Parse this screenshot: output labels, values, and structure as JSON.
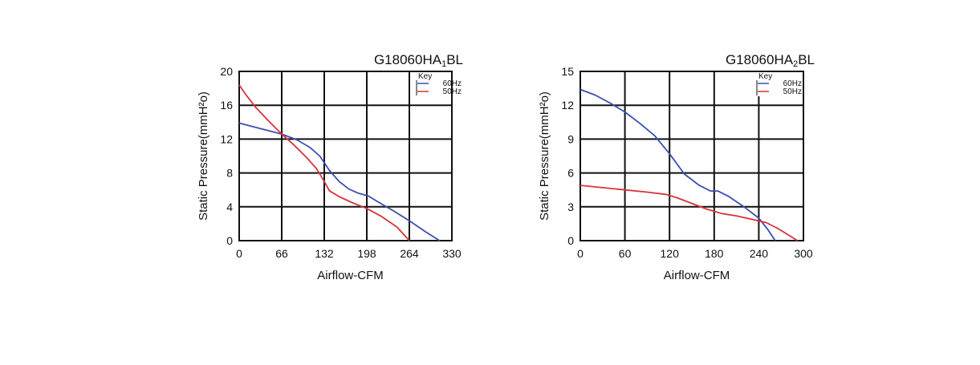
{
  "chart_data": [
    {
      "type": "line",
      "title": "G18060HA",
      "title_sub": "1",
      "title_suffix": "BL",
      "xlabel": "Airflow-CFM",
      "ylabel": "Static Pressure(mmH²o)",
      "xlim": [
        0,
        330
      ],
      "ylim": [
        0,
        20
      ],
      "x_ticks": [
        0,
        66,
        132,
        198,
        264,
        330
      ],
      "y_ticks": [
        0,
        4,
        8,
        12,
        16,
        20
      ],
      "grid": true,
      "legend_title": "Key",
      "legend_position": "top-right",
      "series": [
        {
          "name": "60Hz",
          "color": "#3b4fb0",
          "points": [
            [
              0,
              13.9
            ],
            [
              20,
              13.5
            ],
            [
              40,
              13.1
            ],
            [
              66,
              12.6
            ],
            [
              90,
              11.9
            ],
            [
              110,
              11.0
            ],
            [
              125,
              10.0
            ],
            [
              140,
              8.3
            ],
            [
              155,
              7.0
            ],
            [
              170,
              6.1
            ],
            [
              185,
              5.6
            ],
            [
              200,
              5.3
            ],
            [
              215,
              4.6
            ],
            [
              240,
              3.5
            ],
            [
              265,
              2.3
            ],
            [
              290,
              1.0
            ],
            [
              311,
              0
            ]
          ]
        },
        {
          "name": "50Hz",
          "color": "#d8323c",
          "points": [
            [
              0,
              18.4
            ],
            [
              10,
              17.3
            ],
            [
              25,
              15.8
            ],
            [
              45,
              14.2
            ],
            [
              66,
              12.6
            ],
            [
              85,
              11.3
            ],
            [
              105,
              9.8
            ],
            [
              120,
              8.5
            ],
            [
              132,
              7.0
            ],
            [
              140,
              5.9
            ],
            [
              155,
              5.2
            ],
            [
              175,
              4.5
            ],
            [
              198,
              3.8
            ],
            [
              220,
              2.9
            ],
            [
              245,
              1.6
            ],
            [
              264,
              0
            ]
          ]
        }
      ]
    },
    {
      "type": "line",
      "title": "G18060HA",
      "title_sub": "2",
      "title_suffix": "BL",
      "xlabel": "Airflow-CFM",
      "ylabel": "Static Pressure(mmH²o)",
      "xlim": [
        0,
        300
      ],
      "ylim": [
        0,
        15
      ],
      "x_ticks": [
        0,
        60,
        120,
        180,
        240,
        300
      ],
      "y_ticks": [
        0,
        3,
        6,
        9,
        12,
        15
      ],
      "grid": true,
      "legend_title": "Key",
      "legend_position": "top-right",
      "series": [
        {
          "name": "60Hz",
          "color": "#3b4fb0",
          "points": [
            [
              0,
              13.4
            ],
            [
              20,
              12.9
            ],
            [
              40,
              12.2
            ],
            [
              60,
              11.4
            ],
            [
              80,
              10.4
            ],
            [
              100,
              9.3
            ],
            [
              120,
              7.7
            ],
            [
              140,
              5.9
            ],
            [
              160,
              4.9
            ],
            [
              175,
              4.4
            ],
            [
              185,
              4.4
            ],
            [
              200,
              3.9
            ],
            [
              220,
              3.0
            ],
            [
              240,
              2.0
            ],
            [
              252,
              1.0
            ],
            [
              262,
              0
            ]
          ]
        },
        {
          "name": "50Hz",
          "color": "#d8323c",
          "points": [
            [
              0,
              4.9
            ],
            [
              30,
              4.7
            ],
            [
              60,
              4.5
            ],
            [
              90,
              4.3
            ],
            [
              115,
              4.1
            ],
            [
              130,
              3.8
            ],
            [
              150,
              3.3
            ],
            [
              170,
              2.8
            ],
            [
              190,
              2.4
            ],
            [
              210,
              2.2
            ],
            [
              230,
              1.9
            ],
            [
              250,
              1.6
            ],
            [
              265,
              1.1
            ],
            [
              280,
              0.5
            ],
            [
              292,
              0
            ]
          ]
        }
      ]
    }
  ]
}
